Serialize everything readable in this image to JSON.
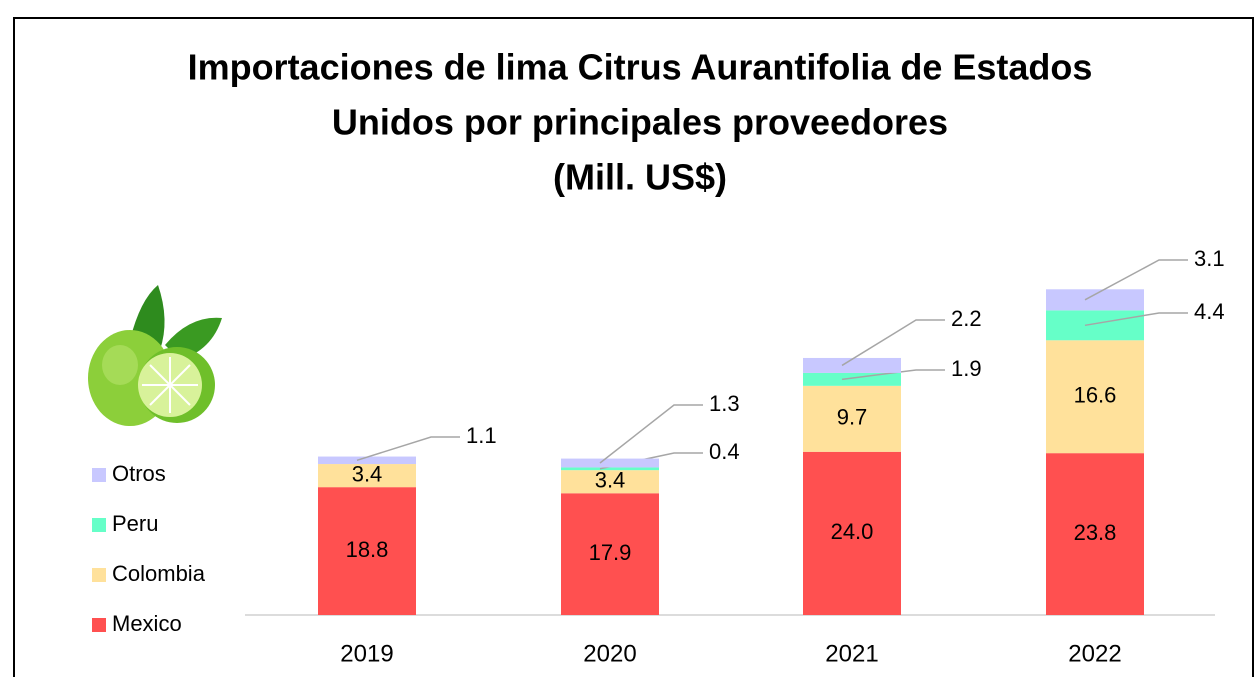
{
  "chart_data": {
    "type": "stacked_bar",
    "title": [
      "Importaciones de lima Citrus Aurantifolia de Estados",
      "Unidos por principales proveedores",
      "(Mill. US$)"
    ],
    "categories": [
      "2019",
      "2020",
      "2021",
      "2022"
    ],
    "series": [
      {
        "name": "Mexico",
        "color": "#ff5050",
        "values": [
          18.8,
          17.9,
          24.0,
          23.8
        ],
        "value_labels": [
          "18.8",
          "17.9",
          "24.0",
          "23.8"
        ]
      },
      {
        "name": "Colombia",
        "color": "#ffe19b",
        "values": [
          3.4,
          3.4,
          9.7,
          16.6
        ],
        "value_labels": [
          "3.4",
          "3.4",
          "9.7",
          "16.6"
        ]
      },
      {
        "name": "Peru",
        "color": "#66ffc8",
        "values": [
          null,
          0.4,
          1.9,
          4.4
        ],
        "value_labels": [
          null,
          "0.4",
          "1.9",
          "4.4"
        ]
      },
      {
        "name": "Otros",
        "color": "#c8c8ff",
        "values": [
          1.1,
          1.3,
          2.2,
          3.1
        ],
        "value_labels": [
          "1.1",
          "1.3",
          "2.2",
          "3.1"
        ]
      }
    ]
  }
}
